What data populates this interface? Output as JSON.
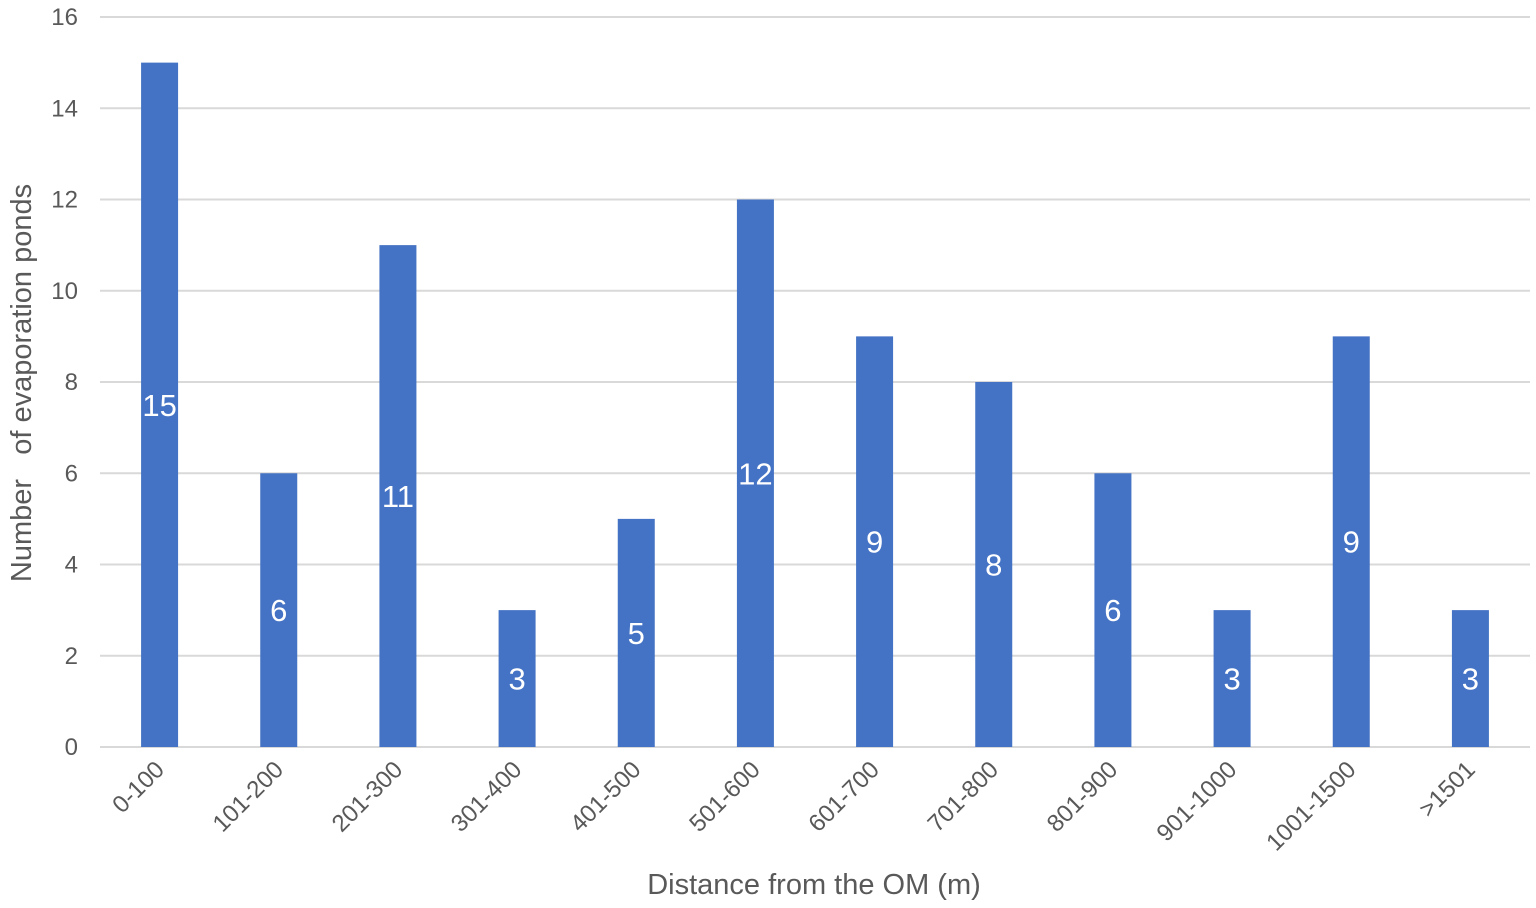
{
  "chart_data": {
    "type": "bar",
    "title": "",
    "xlabel": "Distance from the OM (m)",
    "ylabel": "Number   of evaporation ponds",
    "ylim": [
      0,
      16
    ],
    "yticks": [
      0,
      2,
      4,
      6,
      8,
      10,
      12,
      14,
      16
    ],
    "grid": true,
    "legend": "none",
    "bar_color": "#4472c4",
    "data_labels": true,
    "categories": [
      "0-100",
      "101-200",
      "201-300",
      "301-400",
      "401-500",
      "501-600",
      "601-700",
      "701-800",
      "801-900",
      "901-1000",
      "1001-1500",
      ">1501"
    ],
    "values": [
      15,
      6,
      11,
      3,
      5,
      12,
      9,
      8,
      6,
      3,
      9,
      3
    ]
  }
}
